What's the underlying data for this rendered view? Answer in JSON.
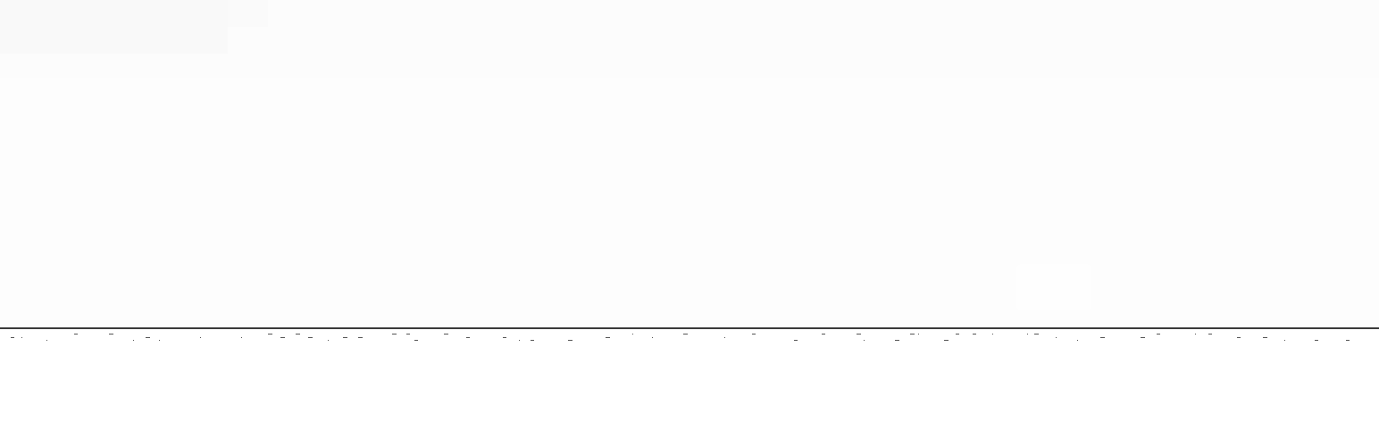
{
  "window": {
    "header_title": "",
    "ghost_button_label": ""
  },
  "colors": {
    "background": "#ffffff",
    "header_band": "#fcfcfc",
    "rule": "#3a3a3a",
    "fragments": "#555555"
  }
}
